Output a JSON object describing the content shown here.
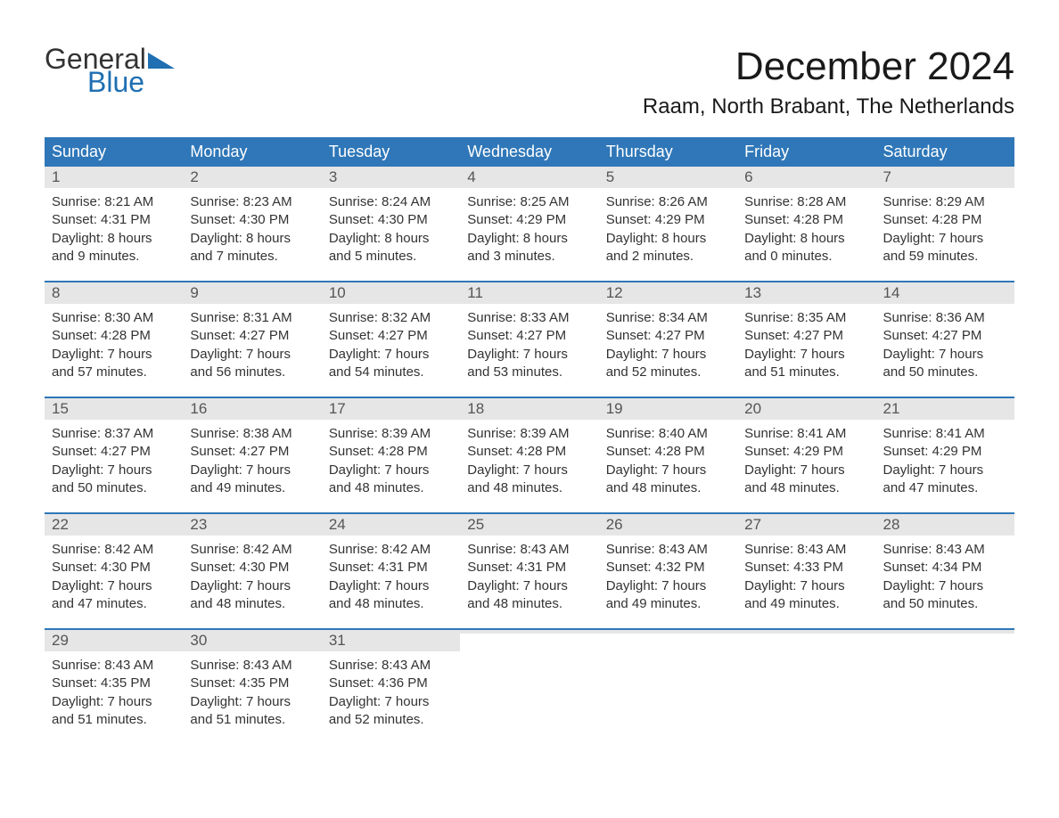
{
  "logo": {
    "part1": "General",
    "part2": "Blue",
    "tri_color": "#1f6fb2"
  },
  "title": "December 2024",
  "location": "Raam, North Brabant, The Netherlands",
  "colors": {
    "header_bg": "#2f77b8",
    "header_text": "#ffffff",
    "daynum_bg": "#e6e6e6",
    "daynum_text": "#555555",
    "body_text": "#333333",
    "week_border": "#2f77b8",
    "page_bg": "#ffffff"
  },
  "fonts": {
    "title_size_pt": 33,
    "location_size_pt": 18,
    "dayheader_size_pt": 14,
    "daynum_size_pt": 13,
    "body_size_pt": 11,
    "family": "Arial"
  },
  "day_names": [
    "Sunday",
    "Monday",
    "Tuesday",
    "Wednesday",
    "Thursday",
    "Friday",
    "Saturday"
  ],
  "days": [
    {
      "n": "1",
      "sunrise": "Sunrise: 8:21 AM",
      "sunset": "Sunset: 4:31 PM",
      "d1": "Daylight: 8 hours",
      "d2": "and 9 minutes."
    },
    {
      "n": "2",
      "sunrise": "Sunrise: 8:23 AM",
      "sunset": "Sunset: 4:30 PM",
      "d1": "Daylight: 8 hours",
      "d2": "and 7 minutes."
    },
    {
      "n": "3",
      "sunrise": "Sunrise: 8:24 AM",
      "sunset": "Sunset: 4:30 PM",
      "d1": "Daylight: 8 hours",
      "d2": "and 5 minutes."
    },
    {
      "n": "4",
      "sunrise": "Sunrise: 8:25 AM",
      "sunset": "Sunset: 4:29 PM",
      "d1": "Daylight: 8 hours",
      "d2": "and 3 minutes."
    },
    {
      "n": "5",
      "sunrise": "Sunrise: 8:26 AM",
      "sunset": "Sunset: 4:29 PM",
      "d1": "Daylight: 8 hours",
      "d2": "and 2 minutes."
    },
    {
      "n": "6",
      "sunrise": "Sunrise: 8:28 AM",
      "sunset": "Sunset: 4:28 PM",
      "d1": "Daylight: 8 hours",
      "d2": "and 0 minutes."
    },
    {
      "n": "7",
      "sunrise": "Sunrise: 8:29 AM",
      "sunset": "Sunset: 4:28 PM",
      "d1": "Daylight: 7 hours",
      "d2": "and 59 minutes."
    },
    {
      "n": "8",
      "sunrise": "Sunrise: 8:30 AM",
      "sunset": "Sunset: 4:28 PM",
      "d1": "Daylight: 7 hours",
      "d2": "and 57 minutes."
    },
    {
      "n": "9",
      "sunrise": "Sunrise: 8:31 AM",
      "sunset": "Sunset: 4:27 PM",
      "d1": "Daylight: 7 hours",
      "d2": "and 56 minutes."
    },
    {
      "n": "10",
      "sunrise": "Sunrise: 8:32 AM",
      "sunset": "Sunset: 4:27 PM",
      "d1": "Daylight: 7 hours",
      "d2": "and 54 minutes."
    },
    {
      "n": "11",
      "sunrise": "Sunrise: 8:33 AM",
      "sunset": "Sunset: 4:27 PM",
      "d1": "Daylight: 7 hours",
      "d2": "and 53 minutes."
    },
    {
      "n": "12",
      "sunrise": "Sunrise: 8:34 AM",
      "sunset": "Sunset: 4:27 PM",
      "d1": "Daylight: 7 hours",
      "d2": "and 52 minutes."
    },
    {
      "n": "13",
      "sunrise": "Sunrise: 8:35 AM",
      "sunset": "Sunset: 4:27 PM",
      "d1": "Daylight: 7 hours",
      "d2": "and 51 minutes."
    },
    {
      "n": "14",
      "sunrise": "Sunrise: 8:36 AM",
      "sunset": "Sunset: 4:27 PM",
      "d1": "Daylight: 7 hours",
      "d2": "and 50 minutes."
    },
    {
      "n": "15",
      "sunrise": "Sunrise: 8:37 AM",
      "sunset": "Sunset: 4:27 PM",
      "d1": "Daylight: 7 hours",
      "d2": "and 50 minutes."
    },
    {
      "n": "16",
      "sunrise": "Sunrise: 8:38 AM",
      "sunset": "Sunset: 4:27 PM",
      "d1": "Daylight: 7 hours",
      "d2": "and 49 minutes."
    },
    {
      "n": "17",
      "sunrise": "Sunrise: 8:39 AM",
      "sunset": "Sunset: 4:28 PM",
      "d1": "Daylight: 7 hours",
      "d2": "and 48 minutes."
    },
    {
      "n": "18",
      "sunrise": "Sunrise: 8:39 AM",
      "sunset": "Sunset: 4:28 PM",
      "d1": "Daylight: 7 hours",
      "d2": "and 48 minutes."
    },
    {
      "n": "19",
      "sunrise": "Sunrise: 8:40 AM",
      "sunset": "Sunset: 4:28 PM",
      "d1": "Daylight: 7 hours",
      "d2": "and 48 minutes."
    },
    {
      "n": "20",
      "sunrise": "Sunrise: 8:41 AM",
      "sunset": "Sunset: 4:29 PM",
      "d1": "Daylight: 7 hours",
      "d2": "and 48 minutes."
    },
    {
      "n": "21",
      "sunrise": "Sunrise: 8:41 AM",
      "sunset": "Sunset: 4:29 PM",
      "d1": "Daylight: 7 hours",
      "d2": "and 47 minutes."
    },
    {
      "n": "22",
      "sunrise": "Sunrise: 8:42 AM",
      "sunset": "Sunset: 4:30 PM",
      "d1": "Daylight: 7 hours",
      "d2": "and 47 minutes."
    },
    {
      "n": "23",
      "sunrise": "Sunrise: 8:42 AM",
      "sunset": "Sunset: 4:30 PM",
      "d1": "Daylight: 7 hours",
      "d2": "and 48 minutes."
    },
    {
      "n": "24",
      "sunrise": "Sunrise: 8:42 AM",
      "sunset": "Sunset: 4:31 PM",
      "d1": "Daylight: 7 hours",
      "d2": "and 48 minutes."
    },
    {
      "n": "25",
      "sunrise": "Sunrise: 8:43 AM",
      "sunset": "Sunset: 4:31 PM",
      "d1": "Daylight: 7 hours",
      "d2": "and 48 minutes."
    },
    {
      "n": "26",
      "sunrise": "Sunrise: 8:43 AM",
      "sunset": "Sunset: 4:32 PM",
      "d1": "Daylight: 7 hours",
      "d2": "and 49 minutes."
    },
    {
      "n": "27",
      "sunrise": "Sunrise: 8:43 AM",
      "sunset": "Sunset: 4:33 PM",
      "d1": "Daylight: 7 hours",
      "d2": "and 49 minutes."
    },
    {
      "n": "28",
      "sunrise": "Sunrise: 8:43 AM",
      "sunset": "Sunset: 4:34 PM",
      "d1": "Daylight: 7 hours",
      "d2": "and 50 minutes."
    },
    {
      "n": "29",
      "sunrise": "Sunrise: 8:43 AM",
      "sunset": "Sunset: 4:35 PM",
      "d1": "Daylight: 7 hours",
      "d2": "and 51 minutes."
    },
    {
      "n": "30",
      "sunrise": "Sunrise: 8:43 AM",
      "sunset": "Sunset: 4:35 PM",
      "d1": "Daylight: 7 hours",
      "d2": "and 51 minutes."
    },
    {
      "n": "31",
      "sunrise": "Sunrise: 8:43 AM",
      "sunset": "Sunset: 4:36 PM",
      "d1": "Daylight: 7 hours",
      "d2": "and 52 minutes."
    }
  ],
  "layout": {
    "leading_blanks": 0,
    "trailing_blanks": 4,
    "columns": 7
  }
}
